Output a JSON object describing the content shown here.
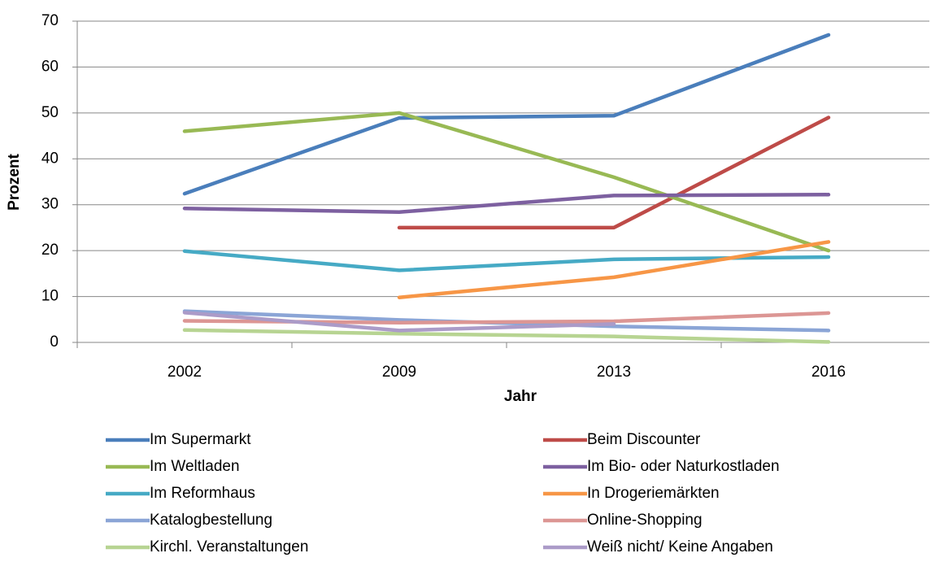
{
  "chart_data": {
    "type": "line",
    "x_label": "Jahr",
    "y_label": "Prozent",
    "categories": [
      "2002",
      "2009",
      "2013",
      "2016"
    ],
    "ylim": [
      0,
      70
    ],
    "yticks": [
      0,
      10,
      20,
      30,
      40,
      50,
      60,
      70
    ],
    "grid": true,
    "series": [
      {
        "name": "Im Supermarkt",
        "color": "#4a7ebb",
        "values": [
          32.4,
          48.9,
          49.4,
          67
        ]
      },
      {
        "name": "Beim Discounter",
        "color": "#be4b48",
        "values": [
          null,
          25,
          25,
          49
        ]
      },
      {
        "name": "Im Weltladen",
        "color": "#98b954",
        "values": [
          46,
          50,
          36,
          20
        ]
      },
      {
        "name": "Im Bio- oder Naturkostladen",
        "color": "#7d60a0",
        "values": [
          29.2,
          28.4,
          32,
          32.2
        ]
      },
      {
        "name": "Im Reformhaus",
        "color": "#46aac5",
        "values": [
          19.9,
          15.7,
          18.1,
          18.6
        ]
      },
      {
        "name": "In Drogeriemärkten",
        "color": "#f79646",
        "values": [
          null,
          9.8,
          14.2,
          21.9
        ]
      },
      {
        "name": "Katalogbestellung",
        "color": "#8ba5d6",
        "values": [
          6.8,
          4.9,
          3.5,
          2.6
        ]
      },
      {
        "name": "Online-Shopping",
        "color": "#dc9694",
        "values": [
          4.7,
          4.3,
          4.6,
          6.4
        ]
      },
      {
        "name": "Kirchl. Veranstaltungen",
        "color": "#b7d492",
        "values": [
          2.7,
          1.9,
          1.3,
          0.1
        ]
      },
      {
        "name": "Weiß nicht/ Keine Angaben",
        "color": "#ab9bc8",
        "values": [
          6.5,
          2.6,
          4.0,
          null
        ]
      }
    ]
  }
}
